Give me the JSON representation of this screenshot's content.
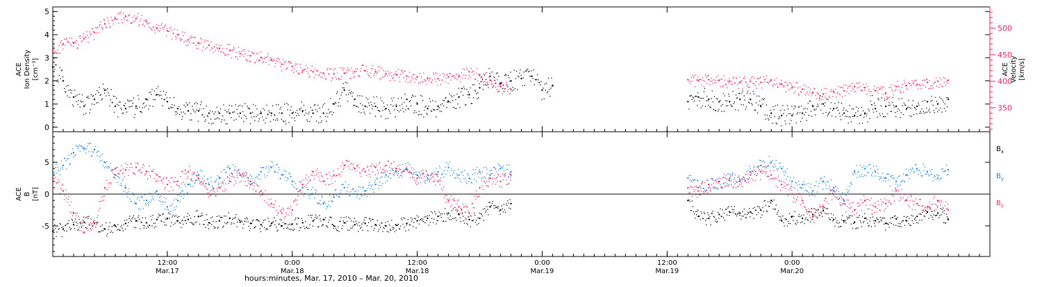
{
  "colors": {
    "black": "#000000",
    "pink": "#e8245c",
    "blue": "#1a7fe0"
  },
  "chart_data": [
    {
      "type": "scatter",
      "panel": "top",
      "left_axis": {
        "label_lines": [
          "ACE",
          "Ion Density",
          "[cm⁻³]"
        ],
        "ylim": [
          -0.2,
          5.2
        ],
        "ticks": [
          "0",
          "1",
          "2",
          "3",
          "4",
          "5"
        ]
      },
      "right_axis": {
        "label_lines": [
          "ACE",
          "Velocity",
          "[km/s]"
        ],
        "ylim": [
          305,
          540
        ],
        "ticks": [
          "350",
          "400",
          "450",
          "500"
        ]
      },
      "series": [
        {
          "axis": "left",
          "color": "black",
          "x": [
            0,
            2,
            4,
            6,
            8,
            10,
            12,
            14,
            16,
            18,
            20,
            22,
            24,
            26,
            28,
            30,
            32,
            34,
            36,
            38,
            40,
            42,
            44,
            46,
            48,
            50,
            52,
            54,
            56,
            58,
            60,
            62,
            64,
            66,
            68,
            70,
            72,
            74,
            76,
            78,
            80,
            82,
            84,
            86,
            88,
            90,
            92,
            94,
            96,
            98,
            100,
            102,
            104,
            106,
            108,
            110,
            112,
            114,
            116,
            118,
            120,
            122,
            124,
            126,
            128,
            130,
            132,
            134,
            136,
            138,
            140,
            142,
            144,
            146,
            148,
            150,
            152,
            154,
            156,
            158,
            160,
            162,
            164,
            166,
            168,
            170,
            172,
            174,
            176,
            178,
            180
          ],
          "values": [
            2.6,
            2.0,
            1.3,
            0.9,
            1.2,
            1.6,
            0.9,
            0.8,
            0.9,
            1.2,
            1.4,
            1.1,
            0.8,
            0.7,
            0.7,
            0.6,
            0.6,
            0.6,
            0.6,
            0.6,
            0.6,
            0.6,
            0.6,
            0.6,
            0.7,
            0.6,
            0.6,
            1.0,
            1.6,
            1.2,
            0.9,
            0.9,
            0.8,
            0.9,
            1.2,
            1.0,
            0.8,
            0.9,
            1.1,
            1.3,
            1.4,
            1.7,
            2.2,
            1.9,
            2.0,
            2.1,
            2.2,
            1.6,
            1.8,
            null,
            null,
            null,
            null,
            null,
            null,
            null,
            null,
            null,
            null,
            null,
            null,
            1.1,
            1.3,
            1.2,
            1.1,
            1.1,
            1.2,
            1.2,
            0.9,
            0.6,
            0.5,
            0.5,
            0.6,
            0.9,
            1.0,
            0.8,
            0.6,
            0.5,
            0.6,
            0.8,
            0.9,
            0.9,
            0.8,
            0.9,
            1.1,
            1.0,
            1.2,
            null,
            null,
            null,
            null
          ]
        },
        {
          "axis": "right",
          "color": "pink",
          "x": [
            0,
            2,
            4,
            6,
            8,
            10,
            12,
            14,
            16,
            18,
            20,
            22,
            24,
            26,
            28,
            30,
            32,
            34,
            36,
            38,
            40,
            42,
            44,
            46,
            48,
            50,
            52,
            54,
            56,
            58,
            60,
            62,
            64,
            66,
            68,
            70,
            72,
            74,
            76,
            78,
            80,
            82,
            84,
            86,
            88,
            90,
            92,
            94,
            96,
            98,
            100,
            102,
            104,
            106,
            108,
            110,
            112,
            114,
            116,
            118,
            120,
            122,
            124,
            126,
            128,
            130,
            132,
            134,
            136,
            138,
            140,
            142,
            144,
            146,
            148,
            150,
            152,
            154,
            156,
            158,
            160,
            162,
            164,
            166,
            168,
            170,
            172,
            174,
            176,
            178,
            180
          ],
          "values": [
            458,
            470,
            472,
            480,
            492,
            508,
            518,
            522,
            518,
            512,
            500,
            495,
            488,
            478,
            472,
            468,
            462,
            458,
            452,
            448,
            445,
            440,
            432,
            428,
            420,
            418,
            415,
            414,
            415,
            418,
            420,
            418,
            414,
            412,
            410,
            408,
            405,
            405,
            408,
            410,
            418,
            412,
            402,
            390,
            385,
            null,
            null,
            null,
            null,
            null,
            null,
            null,
            null,
            null,
            null,
            null,
            null,
            null,
            null,
            null,
            null,
            403,
            401,
            403,
            402,
            400,
            398,
            400,
            398,
            402,
            395,
            388,
            385,
            378,
            376,
            380,
            382,
            390,
            388,
            382,
            378,
            390,
            392,
            394,
            398,
            400,
            402,
            null,
            null,
            null,
            null
          ]
        }
      ]
    },
    {
      "type": "scatter",
      "panel": "bottom",
      "left_axis": {
        "label_lines": [
          "ACE",
          "B",
          "[nT]"
        ],
        "ylim": [
          -9.8,
          9.8
        ],
        "ticks": [
          "-5",
          "0",
          "5"
        ],
        "zero_line": true
      },
      "legend": {
        "placement": "right",
        "items": [
          {
            "label": "B",
            "sub": "x",
            "color": "black"
          },
          {
            "label": "B",
            "sub": "y",
            "color": "blue"
          },
          {
            "label": "B",
            "sub": "z",
            "color": "pink"
          }
        ]
      },
      "series": [
        {
          "color": "black",
          "x": [
            0,
            2,
            4,
            6,
            8,
            10,
            12,
            14,
            16,
            18,
            20,
            22,
            24,
            26,
            28,
            30,
            32,
            34,
            36,
            38,
            40,
            42,
            44,
            46,
            48,
            50,
            52,
            54,
            56,
            58,
            60,
            62,
            64,
            66,
            68,
            70,
            72,
            74,
            76,
            78,
            80,
            82,
            84,
            86,
            88,
            90,
            92,
            94,
            96,
            98,
            100,
            102,
            104,
            106,
            108,
            110,
            112,
            114,
            116,
            118,
            120,
            122,
            124,
            126,
            128,
            130,
            132,
            134,
            136,
            138,
            140,
            142,
            144,
            146,
            148,
            150,
            152,
            154,
            156,
            158,
            160,
            162,
            164,
            166,
            168,
            170,
            172,
            174,
            176,
            178,
            180
          ],
          "values": [
            -5.8,
            -5.5,
            -4.8,
            -4.4,
            -4.6,
            -5.5,
            -5.0,
            -4.6,
            -4.2,
            -4.5,
            -4.0,
            -3.8,
            -4.2,
            -4.0,
            -3.5,
            -4.5,
            -4.2,
            -3.8,
            -4.4,
            -4.6,
            -4.8,
            -4.6,
            -5.0,
            -4.7,
            -4.5,
            -4.2,
            -4.0,
            -5.0,
            -4.5,
            -4.8,
            -4.6,
            -4.8,
            -5.0,
            -4.9,
            -4.6,
            -4.2,
            -3.8,
            -3.5,
            -3.0,
            -3.2,
            -4.0,
            -3.8,
            -2.0,
            -2.5,
            -1.5,
            null,
            null,
            null,
            null,
            null,
            null,
            null,
            null,
            null,
            null,
            null,
            null,
            null,
            null,
            null,
            null,
            -1.0,
            -3.5,
            -3.8,
            -3.2,
            -2.8,
            -3.0,
            -2.8,
            -2.5,
            -1.0,
            -4.2,
            -3.5,
            -3.8,
            -3.2,
            -2.6,
            -4.0,
            -4.2,
            -4.4,
            -3.8,
            -4.2,
            -4.6,
            -3.9,
            -4.2,
            -3.5,
            -2.8,
            -3.0,
            -4.0,
            null,
            null,
            null,
            null
          ]
        },
        {
          "color": "blue",
          "x": [
            0,
            2,
            4,
            6,
            8,
            10,
            12,
            14,
            16,
            18,
            20,
            22,
            24,
            26,
            28,
            30,
            32,
            34,
            36,
            38,
            40,
            42,
            44,
            46,
            48,
            50,
            52,
            54,
            56,
            58,
            60,
            62,
            64,
            66,
            68,
            70,
            72,
            74,
            76,
            78,
            80,
            82,
            84,
            86,
            88,
            90,
            92,
            94,
            96,
            98,
            100,
            102,
            104,
            106,
            108,
            110,
            112,
            114,
            116,
            118,
            120,
            122,
            124,
            126,
            128,
            130,
            132,
            134,
            136,
            138,
            140,
            142,
            144,
            146,
            148,
            150,
            152,
            154,
            156,
            158,
            160,
            162,
            164,
            166,
            168,
            170,
            172,
            174,
            176,
            178,
            180
          ],
          "values": [
            3.5,
            4.5,
            6.5,
            7.2,
            7.0,
            5.0,
            3.0,
            1.0,
            -1.5,
            -1.0,
            0.5,
            -2.0,
            -1.0,
            1.5,
            3.0,
            1.5,
            2.5,
            4.0,
            3.0,
            2.0,
            3.5,
            4.2,
            3.0,
            2.0,
            1.0,
            0.0,
            -1.5,
            -0.5,
            1.0,
            0.0,
            0.5,
            1.5,
            3.0,
            3.5,
            4.0,
            3.0,
            2.5,
            3.5,
            4.2,
            3.0,
            2.5,
            3.5,
            3.0,
            4.0,
            3.5,
            null,
            null,
            null,
            null,
            null,
            null,
            null,
            null,
            null,
            null,
            null,
            null,
            null,
            null,
            null,
            null,
            2.5,
            1.0,
            1.5,
            2.0,
            2.5,
            2.2,
            3.5,
            4.5,
            5.0,
            4.0,
            2.0,
            1.5,
            0.5,
            2.0,
            1.0,
            -1.0,
            3.5,
            4.0,
            3.5,
            2.5,
            2.0,
            3.0,
            4.0,
            3.5,
            2.5,
            3.8,
            null,
            null,
            null,
            null
          ]
        },
        {
          "color": "pink",
          "x": [
            0,
            2,
            4,
            6,
            8,
            10,
            12,
            14,
            16,
            18,
            20,
            22,
            24,
            26,
            28,
            30,
            32,
            34,
            36,
            38,
            40,
            42,
            44,
            46,
            48,
            50,
            52,
            54,
            56,
            58,
            60,
            62,
            64,
            66,
            68,
            70,
            72,
            74,
            76,
            78,
            80,
            82,
            84,
            86,
            88,
            90,
            92,
            94,
            96,
            98,
            100,
            102,
            104,
            106,
            108,
            110,
            112,
            114,
            116,
            118,
            120,
            122,
            124,
            126,
            128,
            130,
            132,
            134,
            136,
            138,
            140,
            142,
            144,
            146,
            148,
            150,
            152,
            154,
            156,
            158,
            160,
            162,
            164,
            166,
            168,
            170,
            172,
            174,
            176,
            178,
            180
          ],
          "values": [
            2.5,
            0.5,
            -3.0,
            -6.0,
            -4.5,
            1.0,
            4.0,
            3.8,
            4.2,
            3.5,
            3.0,
            1.5,
            2.0,
            3.5,
            2.5,
            0.0,
            1.0,
            2.0,
            3.0,
            1.5,
            0.5,
            -1.5,
            -3.0,
            -2.5,
            1.5,
            3.5,
            2.0,
            3.0,
            4.5,
            4.0,
            3.5,
            4.2,
            4.5,
            4.0,
            3.8,
            2.5,
            3.0,
            2.0,
            -1.0,
            -2.0,
            -3.0,
            1.0,
            2.5,
            2.0,
            3.0,
            null,
            null,
            null,
            null,
            null,
            null,
            null,
            null,
            null,
            null,
            null,
            null,
            null,
            null,
            null,
            null,
            1.0,
            0.5,
            1.5,
            2.0,
            2.2,
            2.0,
            3.0,
            3.5,
            3.0,
            1.5,
            0.0,
            -1.0,
            -3.5,
            -2.0,
            0.5,
            -1.5,
            -2.5,
            -1.0,
            -2.0,
            -1.5,
            0.5,
            -1.0,
            -1.5,
            -2.0,
            -1.0,
            -2.5,
            null,
            null,
            null,
            null
          ]
        }
      ]
    }
  ],
  "x_axis": {
    "xlim": [
      0,
      180
    ],
    "ticks": [
      {
        "x": 22,
        "time": "12:00",
        "date": "Mar.17"
      },
      {
        "x": 46,
        "time": "0:00",
        "date": "Mar.18"
      },
      {
        "x": 70,
        "time": "12:00",
        "date": "Mar.18"
      },
      {
        "x": 94,
        "time": "0:00",
        "date": "Mar.19"
      },
      {
        "x": 118,
        "time": "12:00",
        "date": "Mar.19"
      },
      {
        "x": 142,
        "time": "0:00",
        "date": "Mar.20"
      }
    ],
    "xlabel": "hours:minutes, Mar. 17, 2010 – Mar. 20, 2010"
  }
}
